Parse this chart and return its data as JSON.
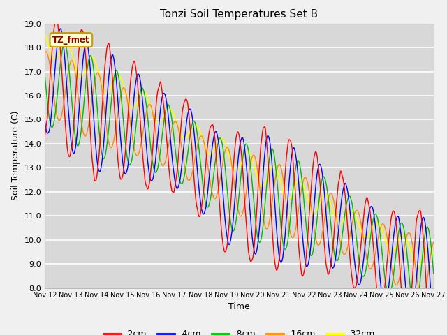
{
  "title": "Tonzi Soil Temperatures Set B",
  "xlabel": "Time",
  "ylabel": "Soil Temperature (C)",
  "ylim": [
    8.0,
    19.0
  ],
  "yticks": [
    8.0,
    9.0,
    10.0,
    11.0,
    12.0,
    13.0,
    14.0,
    15.0,
    16.0,
    17.0,
    18.0,
    19.0
  ],
  "x_labels": [
    "Nov 12",
    "Nov 13",
    "Nov 14",
    "Nov 15",
    "Nov 16",
    "Nov 17",
    "Nov 18",
    "Nov 19",
    "Nov 20",
    "Nov 21",
    "Nov 22",
    "Nov 23",
    "Nov 24",
    "Nov 25",
    "Nov 26",
    "Nov 27"
  ],
  "colors": {
    "-2cm": "#ff0000",
    "-4cm": "#0000ff",
    "-8cm": "#00bb00",
    "-16cm": "#ff8800",
    "-32cm": "#ffff00"
  },
  "legend_label": "TZ_fmet",
  "plot_bg_color": "#d8d8d8",
  "fig_bg_color": "#f0f0f0",
  "title_fontsize": 11,
  "axis_fontsize": 9,
  "tick_fontsize": 8
}
